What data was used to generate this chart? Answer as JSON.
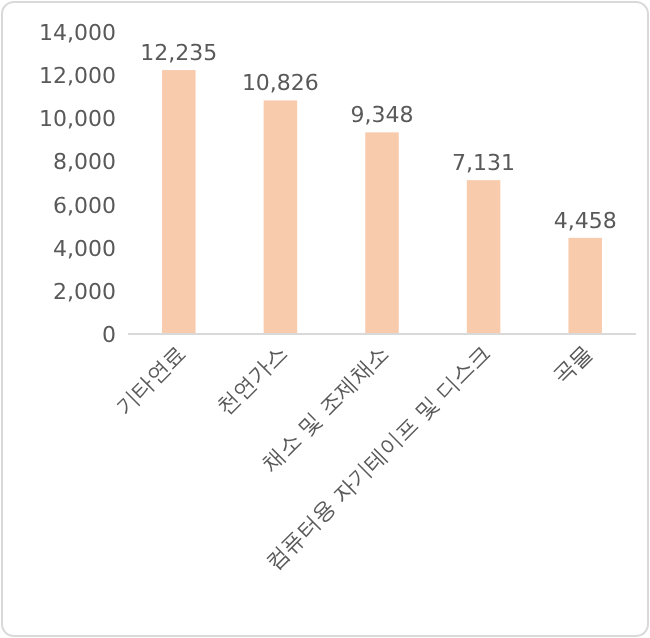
{
  "chart_data": {
    "type": "bar",
    "categories": [
      "기타연료",
      "천연가스",
      "채소 및 조제채소",
      "컴퓨터용 자기테이프 및 디스크",
      "곡물"
    ],
    "values": [
      12235,
      10826,
      9348,
      7131,
      4458
    ],
    "value_labels": [
      "12,235",
      "10,826",
      "9,348",
      "7,131",
      "4,458"
    ],
    "color": "#f8cbad",
    "ylim": [
      0,
      14000
    ],
    "yticks": [
      {
        "value": 0,
        "label": "0"
      },
      {
        "value": 2000,
        "label": "2,000"
      },
      {
        "value": 4000,
        "label": "4,000"
      },
      {
        "value": 6000,
        "label": "6,000"
      },
      {
        "value": 8000,
        "label": "8,000"
      },
      {
        "value": 10000,
        "label": "10,000"
      },
      {
        "value": 12000,
        "label": "12,000"
      },
      {
        "value": 14000,
        "label": "14,000"
      }
    ]
  }
}
